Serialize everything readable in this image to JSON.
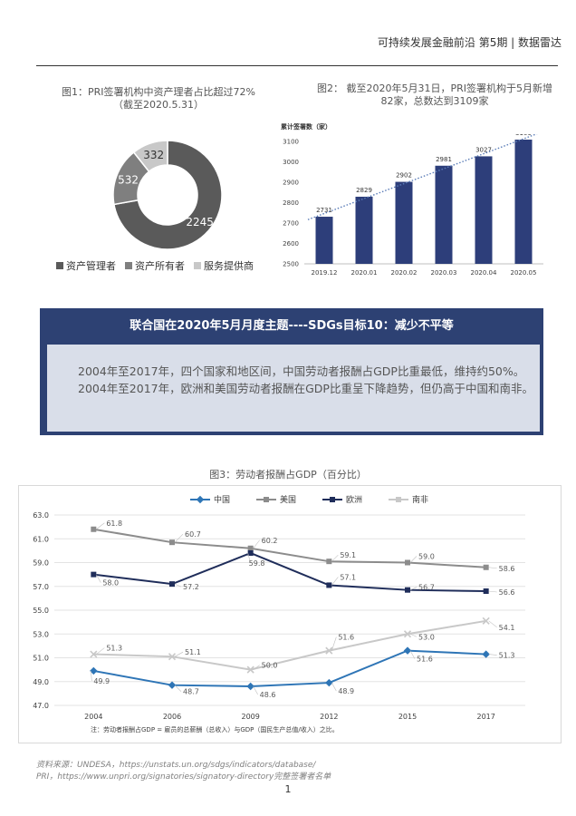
{
  "header": {
    "text": "可持续发展金融前沿 第5期 | 数据雷达"
  },
  "fig1": {
    "caption": "图1：PRI签署机构中资产理者占比超过72%（截至2020.5.31）",
    "chart_data": {
      "type": "pie",
      "variant": "donut",
      "categories": [
        "资产管理者",
        "资产所有者",
        "服务提供商"
      ],
      "values": [
        2245,
        532,
        332
      ],
      "value_labels": [
        "2245",
        "532",
        "332"
      ],
      "colors": [
        "#5a5a5a",
        "#7f7f7f",
        "#c8c8c8"
      ],
      "legend": "bottom"
    }
  },
  "fig2": {
    "caption": "图2：  截至2020年5月31日，PRI签署机构于5月新增82家，总数达到3109家",
    "chart_data": {
      "type": "bar",
      "ylabel": "累计签署数（家）",
      "categories": [
        "2019.12",
        "2020.01",
        "2020.02",
        "2020.03",
        "2020.04",
        "2020.05"
      ],
      "values": [
        2731,
        2829,
        2902,
        2981,
        3027,
        3109
      ],
      "ylim": [
        2500,
        3100
      ],
      "yticks": [
        "2500",
        "2600",
        "2700",
        "2800",
        "2900",
        "3000",
        "3100"
      ],
      "trendline": "linear, dotted",
      "bar_color": "#2d3e7a",
      "trend_color": "#5b7db8"
    }
  },
  "banner": {
    "title": "联合国在2020年5月月度主题----SDGs目标10：减少不平等",
    "para1": "2004年至2017年，四个国家和地区间，中国劳动者报酬占GDP比重最低，维持约50%。",
    "para2": "2004年至2017年，欧洲和美国劳动者报酬在GDP比重呈下降趋势，但仍高于中国和南非。"
  },
  "fig3": {
    "caption": "图3：劳动者报酬占GDP（百分比）",
    "note": "注：劳动者报酬占GDP = 雇员的总薪酬（总收入）与GDP（国民生产总值/收入）之比。",
    "chart_data": {
      "type": "line",
      "x": [
        "2004",
        "2006",
        "2009",
        "2012",
        "2015",
        "2017"
      ],
      "ylim": [
        47.0,
        63.0
      ],
      "yticks": [
        "47.0",
        "49.0",
        "51.0",
        "53.0",
        "55.0",
        "57.0",
        "59.0",
        "61.0",
        "63.0"
      ],
      "grid": true,
      "legend": "top",
      "series": [
        {
          "name": "中国",
          "color": "#2e75b6",
          "marker": "diamond",
          "values": [
            49.9,
            48.7,
            48.6,
            48.9,
            51.6,
            51.3
          ],
          "labels": [
            "49.9",
            "48.7",
            "48.6",
            "48.9",
            "51.6",
            "51.3"
          ]
        },
        {
          "name": "美国",
          "color": "#8c8c8c",
          "marker": "square",
          "values": [
            61.8,
            60.7,
            60.2,
            59.1,
            59.0,
            58.6
          ],
          "labels": [
            "61.8",
            "60.7",
            "60.2",
            "59.1",
            "59.0",
            "58.6"
          ]
        },
        {
          "name": "欧洲",
          "color": "#1f2d5a",
          "marker": "square",
          "values": [
            58.0,
            57.2,
            59.8,
            57.1,
            56.7,
            56.6
          ],
          "labels": [
            "58.0",
            "57.2",
            "59.8",
            "57.1",
            "56.7",
            "56.6"
          ]
        },
        {
          "name": "南非",
          "color": "#c8c8c8",
          "marker": "x",
          "values": [
            51.3,
            51.1,
            50.0,
            51.6,
            53.0,
            54.1
          ],
          "labels": [
            "51.3",
            "51.1",
            "50.0",
            "51.6",
            "53.0",
            "54.1"
          ]
        }
      ]
    }
  },
  "source": {
    "line1": "资料来源：UNDESA，https://unstats.un.org/sdgs/indicators/database/",
    "line2": "PRI，https://www.unpri.org/signatories/signatory-directory完整签署者名单"
  },
  "page": {
    "number": "1"
  }
}
